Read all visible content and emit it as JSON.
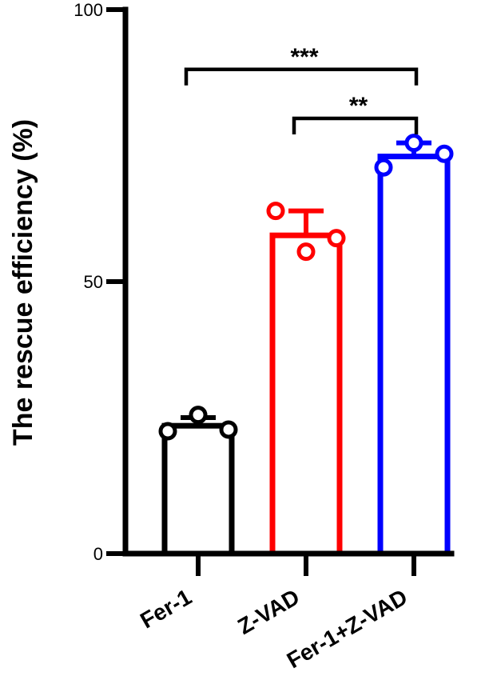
{
  "chart_data": {
    "type": "bar",
    "title": "",
    "xlabel": "",
    "ylabel": "The rescue efficiency (%)",
    "ylim": [
      0,
      100
    ],
    "y_ticks": [
      0,
      50,
      100
    ],
    "y_tick_labels": [
      "0",
      "50",
      "100"
    ],
    "grid": false,
    "legend": "none",
    "categories": [
      "Fer-1",
      "Z-VAD",
      "Fer-1+Z-VAD"
    ],
    "values": [
      23.5,
      58.5,
      73
    ],
    "errors": [
      1.5,
      4.5,
      2.5
    ],
    "points": [
      [
        22.5,
        25.5,
        22.8
      ],
      [
        63,
        55.5,
        58
      ],
      [
        71,
        75.5,
        73.5
      ]
    ],
    "colors": [
      "#000000",
      "#ff0000",
      "#0000ff"
    ],
    "significance": [
      {
        "from": 0,
        "to": 2,
        "label": "***",
        "y": 89
      },
      {
        "from": 1,
        "to": 2,
        "label": "**",
        "y": 80
      }
    ]
  }
}
